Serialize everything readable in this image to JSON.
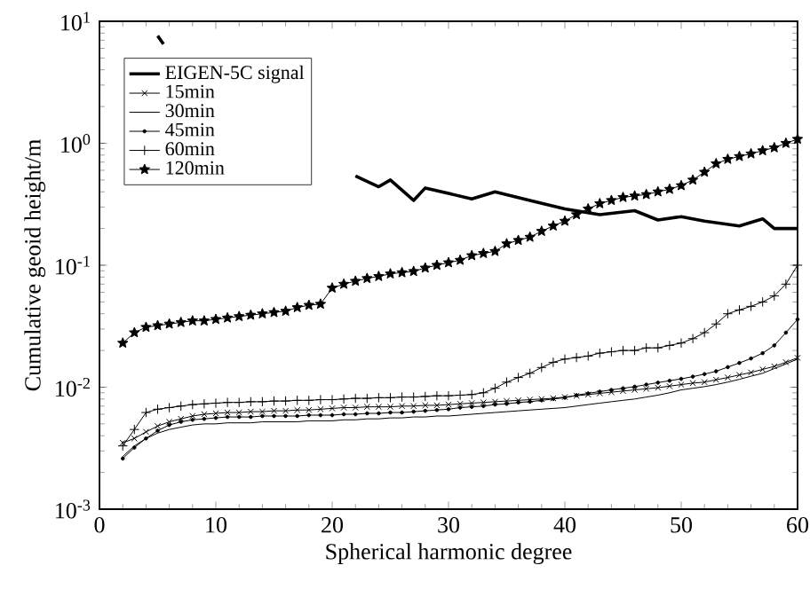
{
  "chart_data": {
    "type": "line",
    "xlabel": "Spherical harmonic degree",
    "ylabel": "Cumulative geoid height/m",
    "log": "y",
    "xlim": [
      0,
      60
    ],
    "ylim": [
      0.001,
      10
    ],
    "xticks": [
      0,
      10,
      20,
      30,
      40,
      50,
      60
    ],
    "yticks": [
      {
        "value": 0.001,
        "label": "10$^{-3}$"
      },
      {
        "value": 0.01,
        "label": "10$^{-2}$"
      },
      {
        "value": 0.1,
        "label": "10$^{-1}$"
      },
      {
        "value": 1,
        "label": "10$^{0}$"
      },
      {
        "value": 10,
        "label": "10$^{1}$"
      }
    ],
    "grid": false,
    "legend": "top left",
    "x": [
      2,
      3,
      4,
      5,
      6,
      7,
      8,
      9,
      10,
      11,
      12,
      13,
      14,
      15,
      16,
      17,
      18,
      19,
      20,
      21,
      22,
      23,
      24,
      25,
      26,
      27,
      28,
      29,
      30,
      31,
      32,
      33,
      34,
      35,
      36,
      37,
      38,
      39,
      40,
      41,
      42,
      43,
      44,
      45,
      46,
      47,
      48,
      49,
      50,
      51,
      52,
      53,
      54,
      55,
      56,
      57,
      58,
      59,
      60
    ],
    "series": [
      {
        "name": "EIGEN-5C signal",
        "color": "#000000",
        "marker": "none",
        "x": [
          5,
          5.5,
          10,
          22,
          24,
          25,
          27,
          28,
          32,
          34,
          37,
          40,
          43,
          46,
          48,
          50,
          52,
          55,
          57,
          58,
          60
        ],
        "values": [
          7.6,
          6.5,
          null,
          0.54,
          0.44,
          0.5,
          0.34,
          0.43,
          0.35,
          0.4,
          0.34,
          0.29,
          0.26,
          0.28,
          0.235,
          0.25,
          0.23,
          0.21,
          0.24,
          0.2,
          0.2
        ]
      },
      {
        "name": "15min",
        "color": "#000000",
        "marker": "cross",
        "values": [
          0.0035,
          0.0038,
          0.0043,
          0.0048,
          0.0052,
          0.0055,
          0.0058,
          0.006,
          0.0061,
          0.0062,
          0.0062,
          0.0063,
          0.0063,
          0.0064,
          0.0064,
          0.0065,
          0.0065,
          0.0066,
          0.0067,
          0.0068,
          0.0068,
          0.0069,
          0.0069,
          0.0069,
          0.007,
          0.007,
          0.0071,
          0.0071,
          0.0072,
          0.0073,
          0.0074,
          0.0075,
          0.0076,
          0.0077,
          0.0078,
          0.0079,
          0.008,
          0.0081,
          0.0083,
          0.0085,
          0.0087,
          0.0089,
          0.0091,
          0.0093,
          0.0095,
          0.0097,
          0.0099,
          0.0102,
          0.0105,
          0.0108,
          0.011,
          0.0115,
          0.012,
          0.0126,
          0.0132,
          0.014,
          0.0148,
          0.016,
          0.0174
        ]
      },
      {
        "name": "30min",
        "color": "#000000",
        "marker": "none",
        "values": [
          0.0027,
          0.0033,
          0.0038,
          0.0042,
          0.0045,
          0.0047,
          0.0049,
          0.005,
          0.005,
          0.0051,
          0.0051,
          0.0051,
          0.0052,
          0.0052,
          0.0052,
          0.0052,
          0.0053,
          0.0053,
          0.0053,
          0.0054,
          0.0054,
          0.0055,
          0.0055,
          0.0056,
          0.0056,
          0.0057,
          0.0057,
          0.0058,
          0.0058,
          0.0059,
          0.006,
          0.0061,
          0.0062,
          0.0063,
          0.0064,
          0.0065,
          0.0066,
          0.0067,
          0.0068,
          0.007,
          0.0072,
          0.0074,
          0.0076,
          0.0078,
          0.008,
          0.0083,
          0.0086,
          0.009,
          0.0095,
          0.0098,
          0.0101,
          0.0105,
          0.011,
          0.0116,
          0.0123,
          0.013,
          0.0142,
          0.0155,
          0.017
        ]
      },
      {
        "name": "45min",
        "color": "#000000",
        "marker": "circle",
        "values": [
          0.0026,
          0.0032,
          0.0038,
          0.0044,
          0.0049,
          0.0052,
          0.0054,
          0.0055,
          0.0056,
          0.0057,
          0.0057,
          0.0057,
          0.0058,
          0.0058,
          0.0058,
          0.0058,
          0.0059,
          0.0059,
          0.0059,
          0.006,
          0.006,
          0.0061,
          0.0061,
          0.0062,
          0.0062,
          0.0063,
          0.0064,
          0.0065,
          0.0066,
          0.0068,
          0.0069,
          0.007,
          0.0072,
          0.0073,
          0.0075,
          0.0076,
          0.0078,
          0.008,
          0.0082,
          0.0086,
          0.0089,
          0.0092,
          0.0095,
          0.0098,
          0.0101,
          0.0105,
          0.0109,
          0.0113,
          0.0117,
          0.0122,
          0.0128,
          0.0135,
          0.0146,
          0.0158,
          0.0172,
          0.019,
          0.022,
          0.028,
          0.036
        ]
      },
      {
        "name": "60min",
        "color": "#000000",
        "marker": "plus",
        "values": [
          0.0033,
          0.0045,
          0.0062,
          0.0066,
          0.0068,
          0.007,
          0.0072,
          0.0073,
          0.0074,
          0.0075,
          0.0075,
          0.0076,
          0.0076,
          0.0077,
          0.0077,
          0.0078,
          0.0078,
          0.0079,
          0.0079,
          0.008,
          0.0081,
          0.0081,
          0.0082,
          0.0082,
          0.0083,
          0.0083,
          0.0084,
          0.0085,
          0.0085,
          0.0086,
          0.0087,
          0.009,
          0.0098,
          0.011,
          0.012,
          0.013,
          0.0145,
          0.016,
          0.017,
          0.0175,
          0.018,
          0.019,
          0.0195,
          0.02,
          0.02,
          0.021,
          0.021,
          0.022,
          0.023,
          0.025,
          0.028,
          0.033,
          0.04,
          0.043,
          0.046,
          0.05,
          0.056,
          0.07,
          0.1
        ]
      },
      {
        "name": "120min",
        "color": "#000000",
        "marker": "star",
        "values": [
          0.023,
          0.028,
          0.031,
          0.032,
          0.033,
          0.034,
          0.035,
          0.035,
          0.036,
          0.037,
          0.038,
          0.039,
          0.04,
          0.041,
          0.042,
          0.045,
          0.047,
          0.048,
          0.065,
          0.07,
          0.074,
          0.078,
          0.081,
          0.085,
          0.087,
          0.089,
          0.095,
          0.1,
          0.105,
          0.11,
          0.12,
          0.125,
          0.13,
          0.15,
          0.16,
          0.17,
          0.19,
          0.21,
          0.23,
          0.26,
          0.29,
          0.32,
          0.34,
          0.36,
          0.37,
          0.38,
          0.4,
          0.42,
          0.45,
          0.5,
          0.58,
          0.68,
          0.74,
          0.78,
          0.82,
          0.87,
          0.92,
          1.0,
          1.08
        ]
      }
    ]
  }
}
